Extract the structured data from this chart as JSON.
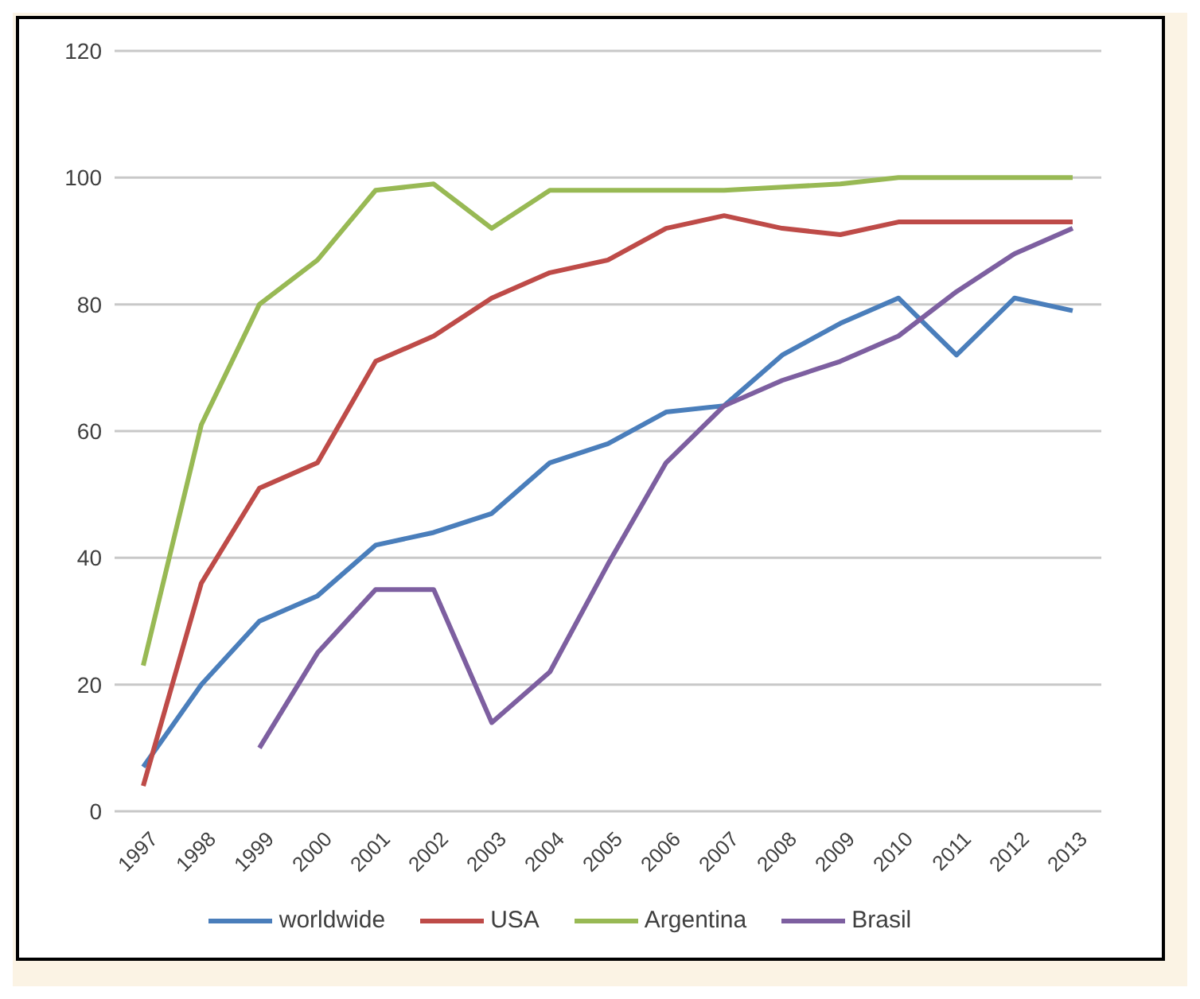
{
  "chart_data": {
    "type": "line",
    "categories": [
      "1997",
      "1998",
      "1999",
      "2000",
      "2001",
      "2002",
      "2003",
      "2004",
      "2005",
      "2006",
      "2007",
      "2008",
      "2009",
      "2010",
      "2011",
      "2012",
      "2013"
    ],
    "series": [
      {
        "name": "worldwide",
        "color": "#4a7ebb",
        "values": [
          7,
          20,
          30,
          34,
          42,
          44,
          47,
          55,
          58,
          63,
          64,
          72,
          77,
          81,
          72,
          81,
          79
        ]
      },
      {
        "name": "USA",
        "color": "#be4b48",
        "values": [
          4,
          36,
          51,
          55,
          71,
          75,
          81,
          85,
          87,
          92,
          94,
          92,
          91,
          93,
          93,
          93,
          93
        ]
      },
      {
        "name": "Argentina",
        "color": "#98b954",
        "values": [
          23,
          61,
          80,
          87,
          98,
          99,
          92,
          98,
          98,
          98,
          98,
          98.5,
          99,
          100,
          100,
          100,
          100
        ]
      },
      {
        "name": "Brasil",
        "color": "#7d5fa0",
        "values": [
          null,
          null,
          10,
          25,
          35,
          35,
          14,
          22,
          39,
          55,
          64,
          68,
          71,
          75,
          82,
          88,
          92
        ]
      }
    ],
    "ylim": [
      0,
      120
    ],
    "yticks": [
      0,
      20,
      40,
      60,
      80,
      100,
      120
    ],
    "grid": "y",
    "legend": "bottom",
    "marker": "none",
    "line_style": "solid"
  }
}
